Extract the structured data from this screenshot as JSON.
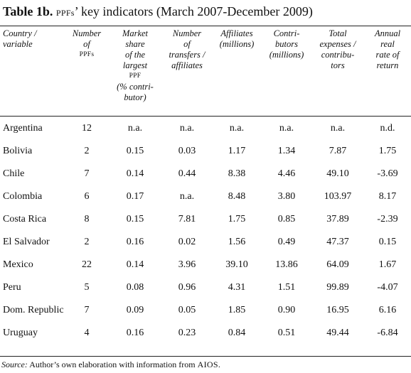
{
  "title": {
    "prefix": "Table 1b.",
    "acronym": "PPFs",
    "rest": "’ key indicators (March 2007-December 2009)"
  },
  "columns": [
    {
      "lines": [
        "Country /",
        "variable"
      ]
    },
    {
      "lines": [
        "Number",
        "of"
      ],
      "small": "PPFs"
    },
    {
      "lines": [
        "Market",
        "share",
        "of the",
        "largest"
      ],
      "small": "PPF",
      "after": [
        "(% contri-",
        "butor)"
      ]
    },
    {
      "lines": [
        "Number",
        "of",
        "transfers /",
        "affiliates"
      ]
    },
    {
      "lines": [
        "Affiliates",
        "(millions)"
      ]
    },
    {
      "lines": [
        "Contri-",
        "butors",
        "(millions)"
      ]
    },
    {
      "lines": [
        "Total",
        "expenses /",
        "contribu-",
        "tors"
      ]
    },
    {
      "lines": [
        "Annual",
        "real",
        "rate of",
        "return"
      ]
    }
  ],
  "rows": [
    {
      "country": "Argentina",
      "num_ppfs": "12",
      "market_share": "n.a.",
      "transfers": "n.a.",
      "affiliates": "n.a.",
      "contributors": "n.a.",
      "expenses": "n.a.",
      "return": "n.d."
    },
    {
      "country": "Bolivia",
      "num_ppfs": "2",
      "market_share": "0.15",
      "transfers": "0.03",
      "affiliates": "1.17",
      "contributors": "1.34",
      "expenses": "7.87",
      "return": "1.75"
    },
    {
      "country": "Chile",
      "num_ppfs": "7",
      "market_share": "0.14",
      "transfers": "0.44",
      "affiliates": "8.38",
      "contributors": "4.46",
      "expenses": "49.10",
      "return": "-3.69"
    },
    {
      "country": "Colombia",
      "num_ppfs": "6",
      "market_share": "0.17",
      "transfers": "n.a.",
      "affiliates": "8.48",
      "contributors": "3.80",
      "expenses": "103.97",
      "return": "8.17"
    },
    {
      "country": "Costa Rica",
      "num_ppfs": "8",
      "market_share": "0.15",
      "transfers": "7.81",
      "affiliates": "1.75",
      "contributors": "0.85",
      "expenses": "37.89",
      "return": "-2.39"
    },
    {
      "country": "El Salvador",
      "num_ppfs": "2",
      "market_share": "0.16",
      "transfers": "0.02",
      "affiliates": "1.56",
      "contributors": "0.49",
      "expenses": "47.37",
      "return": "0.15"
    },
    {
      "country": "Mexico",
      "num_ppfs": "22",
      "market_share": "0.14",
      "transfers": "3.96",
      "affiliates": "39.10",
      "contributors": "13.86",
      "expenses": "64.09",
      "return": "1.67"
    },
    {
      "country": "Peru",
      "num_ppfs": "5",
      "market_share": "0.08",
      "transfers": "0.96",
      "affiliates": "4.31",
      "contributors": "1.51",
      "expenses": "99.89",
      "return": "-4.07"
    },
    {
      "country": "Dom. Republic",
      "num_ppfs": "7",
      "market_share": "0.09",
      "transfers": "0.05",
      "affiliates": "1.85",
      "contributors": "0.90",
      "expenses": "16.95",
      "return": "6.16"
    },
    {
      "country": "Uruguay",
      "num_ppfs": "4",
      "market_share": "0.16",
      "transfers": "0.23",
      "affiliates": "0.84",
      "contributors": "0.51",
      "expenses": "49.44",
      "return": "-6.84"
    }
  ],
  "source": {
    "label": "Source:",
    "text": " Author’s own elaboration with information from ",
    "acronym": "AIOS",
    "end": "."
  }
}
